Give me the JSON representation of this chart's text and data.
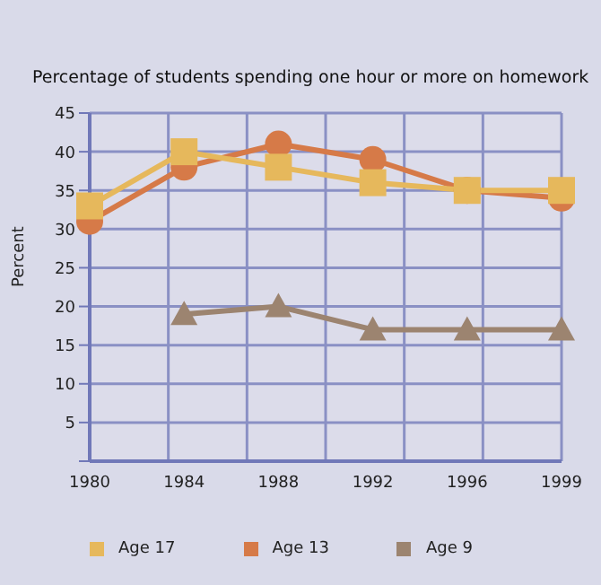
{
  "chart_data": {
    "type": "line",
    "title": "Percentage of students spending one hour or more on homework",
    "ylabel": "Percent",
    "categories": [
      "1980",
      "1984",
      "1988",
      "1992",
      "1996",
      "1999"
    ],
    "series": [
      {
        "name": "Age 17",
        "color": "#e6b85c",
        "marker": "square",
        "values": [
          33,
          40,
          38,
          36,
          35,
          35
        ]
      },
      {
        "name": "Age 13",
        "color": "#d67a48",
        "marker": "circle",
        "values": [
          31,
          38,
          41,
          39,
          35,
          34
        ]
      },
      {
        "name": "Age 9",
        "color": "#9c8470",
        "marker": "triangle",
        "values": [
          null,
          19,
          20,
          17,
          17,
          17
        ]
      }
    ],
    "ylim": [
      0,
      45
    ],
    "yticks": [
      {
        "value": 0,
        "label": null
      },
      5,
      10,
      15,
      20,
      25,
      30,
      35,
      40,
      45
    ],
    "grid": true,
    "legend": "bottom"
  }
}
